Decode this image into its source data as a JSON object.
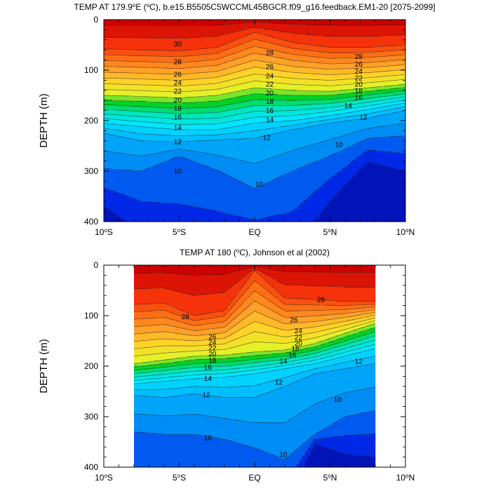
{
  "chart_data": [
    {
      "type": "contour",
      "title_prefix": "TEMP AT 179.9",
      "title_deg": "o",
      "title_mid": "E (",
      "title_unit_deg": "o",
      "title_suffix": "C), b.e15.B5505C5WCCML45BGCR.f09_g16.feedback.EM1-20 [2075-2099]",
      "xlabel": "",
      "ylabel": "DEPTH (m)",
      "xlim": [
        -10,
        10
      ],
      "ylim": [
        0,
        400
      ],
      "x_ticks": [
        -10,
        -5,
        0,
        5,
        10
      ],
      "x_tick_labels": [
        {
          "num": "10",
          "deg": "o",
          "hemi": "S"
        },
        {
          "num": "5",
          "deg": "o",
          "hemi": "S"
        },
        {
          "num": "EQ",
          "deg": "",
          "hemi": ""
        },
        {
          "num": "5",
          "deg": "o",
          "hemi": "N"
        },
        {
          "num": "10",
          "deg": "o",
          "hemi": "N"
        }
      ],
      "y_ticks": [
        "0",
        "100",
        "200",
        "300",
        "400"
      ],
      "data_x_range": [
        -10,
        10
      ],
      "data_depth_max": 400,
      "isotherm_depths": {
        "x": [
          -10,
          -7.5,
          -5,
          -2.5,
          0,
          2.5,
          5,
          7.5,
          10
        ],
        "t28": [
          58,
          60,
          62,
          55,
          25,
          45,
          55,
          55,
          50
        ],
        "t20": [
          150,
          152,
          155,
          150,
          135,
          140,
          142,
          135,
          128
        ],
        "t14": [
          205,
          212,
          218,
          218,
          205,
          200,
          190,
          178,
          165
        ],
        "t12": [
          225,
          240,
          242,
          238,
          235,
          218,
          205,
          195,
          180
        ],
        "t10": [
          295,
          300,
          270,
          298,
          335,
          300,
          270,
          235,
          230
        ],
        "t8": [
          370,
          420,
          460,
          460,
          460,
          460,
          360,
          282,
          300
        ]
      },
      "contour_labels": [
        {
          "text": "30",
          "x": -5.1,
          "d": 48
        },
        {
          "text": "28",
          "x": -5.1,
          "d": 83
        },
        {
          "text": "26",
          "x": -5.1,
          "d": 108
        },
        {
          "text": "24",
          "x": -5.1,
          "d": 125
        },
        {
          "text": "22",
          "x": -5.1,
          "d": 142
        },
        {
          "text": "20",
          "x": -5.1,
          "d": 159
        },
        {
          "text": "18",
          "x": -5.1,
          "d": 176
        },
        {
          "text": "16",
          "x": -5.1,
          "d": 193
        },
        {
          "text": "14",
          "x": -5.1,
          "d": 214
        },
        {
          "text": "12",
          "x": -5.1,
          "d": 242
        },
        {
          "text": "10",
          "x": -5.1,
          "d": 300
        },
        {
          "text": "28",
          "x": 1.0,
          "d": 65
        },
        {
          "text": "26",
          "x": 1.0,
          "d": 93
        },
        {
          "text": "24",
          "x": 1.0,
          "d": 111
        },
        {
          "text": "22",
          "x": 1.0,
          "d": 128
        },
        {
          "text": "20",
          "x": 1.0,
          "d": 145
        },
        {
          "text": "18",
          "x": 1.0,
          "d": 162
        },
        {
          "text": "16",
          "x": 1.0,
          "d": 180
        },
        {
          "text": "14",
          "x": 1.0,
          "d": 198
        },
        {
          "text": "12",
          "x": 0.8,
          "d": 233
        },
        {
          "text": "10",
          "x": 0.3,
          "d": 326
        },
        {
          "text": "28",
          "x": 6.9,
          "d": 73
        },
        {
          "text": "26",
          "x": 6.9,
          "d": 88
        },
        {
          "text": "24",
          "x": 6.9,
          "d": 102
        },
        {
          "text": "22",
          "x": 6.9,
          "d": 115
        },
        {
          "text": "20",
          "x": 6.9,
          "d": 128
        },
        {
          "text": "18",
          "x": 6.9,
          "d": 141
        },
        {
          "text": "16",
          "x": 6.9,
          "d": 154
        },
        {
          "text": "14",
          "x": 6.2,
          "d": 170
        },
        {
          "text": "12",
          "x": 7.2,
          "d": 193
        },
        {
          "text": "10",
          "x": 5.6,
          "d": 247
        }
      ]
    },
    {
      "type": "contour",
      "title_prefix": "TEMP AT 180 (",
      "title_deg": "o",
      "title_suffix": "C), Johnson et al (2002)",
      "xlabel": "",
      "ylabel": "DEPTH (m)",
      "xlim": [
        -10,
        10
      ],
      "ylim": [
        0,
        400
      ],
      "x_ticks": [
        -10,
        -5,
        0,
        5,
        10
      ],
      "x_tick_labels": [
        {
          "num": "10",
          "deg": "o",
          "hemi": "S"
        },
        {
          "num": "5",
          "deg": "o",
          "hemi": "S"
        },
        {
          "num": "EQ",
          "deg": "",
          "hemi": ""
        },
        {
          "num": "5",
          "deg": "o",
          "hemi": "N"
        },
        {
          "num": "10",
          "deg": "o",
          "hemi": "N"
        }
      ],
      "y_ticks": [
        "0",
        "100",
        "200",
        "300",
        "400"
      ],
      "data_x_range": [
        -8,
        8
      ],
      "data_depth_max": 400,
      "isotherm_depths": {
        "x": [
          -8,
          -6,
          -4,
          -2,
          0,
          2,
          4,
          6,
          8
        ],
        "t28": [
          78,
          75,
          100,
          90,
          10,
          65,
          68,
          72,
          72
        ],
        "t20": [
          195,
          188,
          180,
          178,
          172,
          168,
          155,
          135,
          115
        ],
        "t14": [
          235,
          230,
          225,
          222,
          215,
          205,
          195,
          180,
          165
        ],
        "t12": [
          258,
          262,
          255,
          262,
          262,
          240,
          215,
          205,
          195
        ],
        "t10": [
          330,
          335,
          335,
          345,
          362,
          385,
          335,
          300,
          288
        ],
        "t8": [
          480,
          480,
          480,
          480,
          480,
          480,
          355,
          375,
          380
        ]
      },
      "contour_labels": [
        {
          "text": "28",
          "x": 4.4,
          "d": 68
        },
        {
          "text": "28",
          "x": -4.6,
          "d": 102
        },
        {
          "text": "26",
          "x": 2.6,
          "d": 108
        },
        {
          "text": "24",
          "x": 2.9,
          "d": 130
        },
        {
          "text": "22",
          "x": 2.9,
          "d": 143
        },
        {
          "text": "20",
          "x": 2.9,
          "d": 155
        },
        {
          "text": "18",
          "x": 2.7,
          "d": 165
        },
        {
          "text": "16",
          "x": 2.5,
          "d": 178
        },
        {
          "text": "26",
          "x": -2.8,
          "d": 142
        },
        {
          "text": "24",
          "x": -2.8,
          "d": 153
        },
        {
          "text": "22",
          "x": -2.8,
          "d": 164
        },
        {
          "text": "20",
          "x": -2.8,
          "d": 176
        },
        {
          "text": "18",
          "x": -2.8,
          "d": 188
        },
        {
          "text": "16",
          "x": -3.1,
          "d": 202
        },
        {
          "text": "14",
          "x": -3.1,
          "d": 224
        },
        {
          "text": "12",
          "x": -3.2,
          "d": 257
        },
        {
          "text": "14",
          "x": 1.9,
          "d": 190
        },
        {
          "text": "12",
          "x": 1.6,
          "d": 232
        },
        {
          "text": "12",
          "x": 6.9,
          "d": 190
        },
        {
          "text": "10",
          "x": 5.5,
          "d": 266
        },
        {
          "text": "10",
          "x": -3.1,
          "d": 342
        },
        {
          "text": "10",
          "x": 1.9,
          "d": 375
        }
      ]
    }
  ]
}
